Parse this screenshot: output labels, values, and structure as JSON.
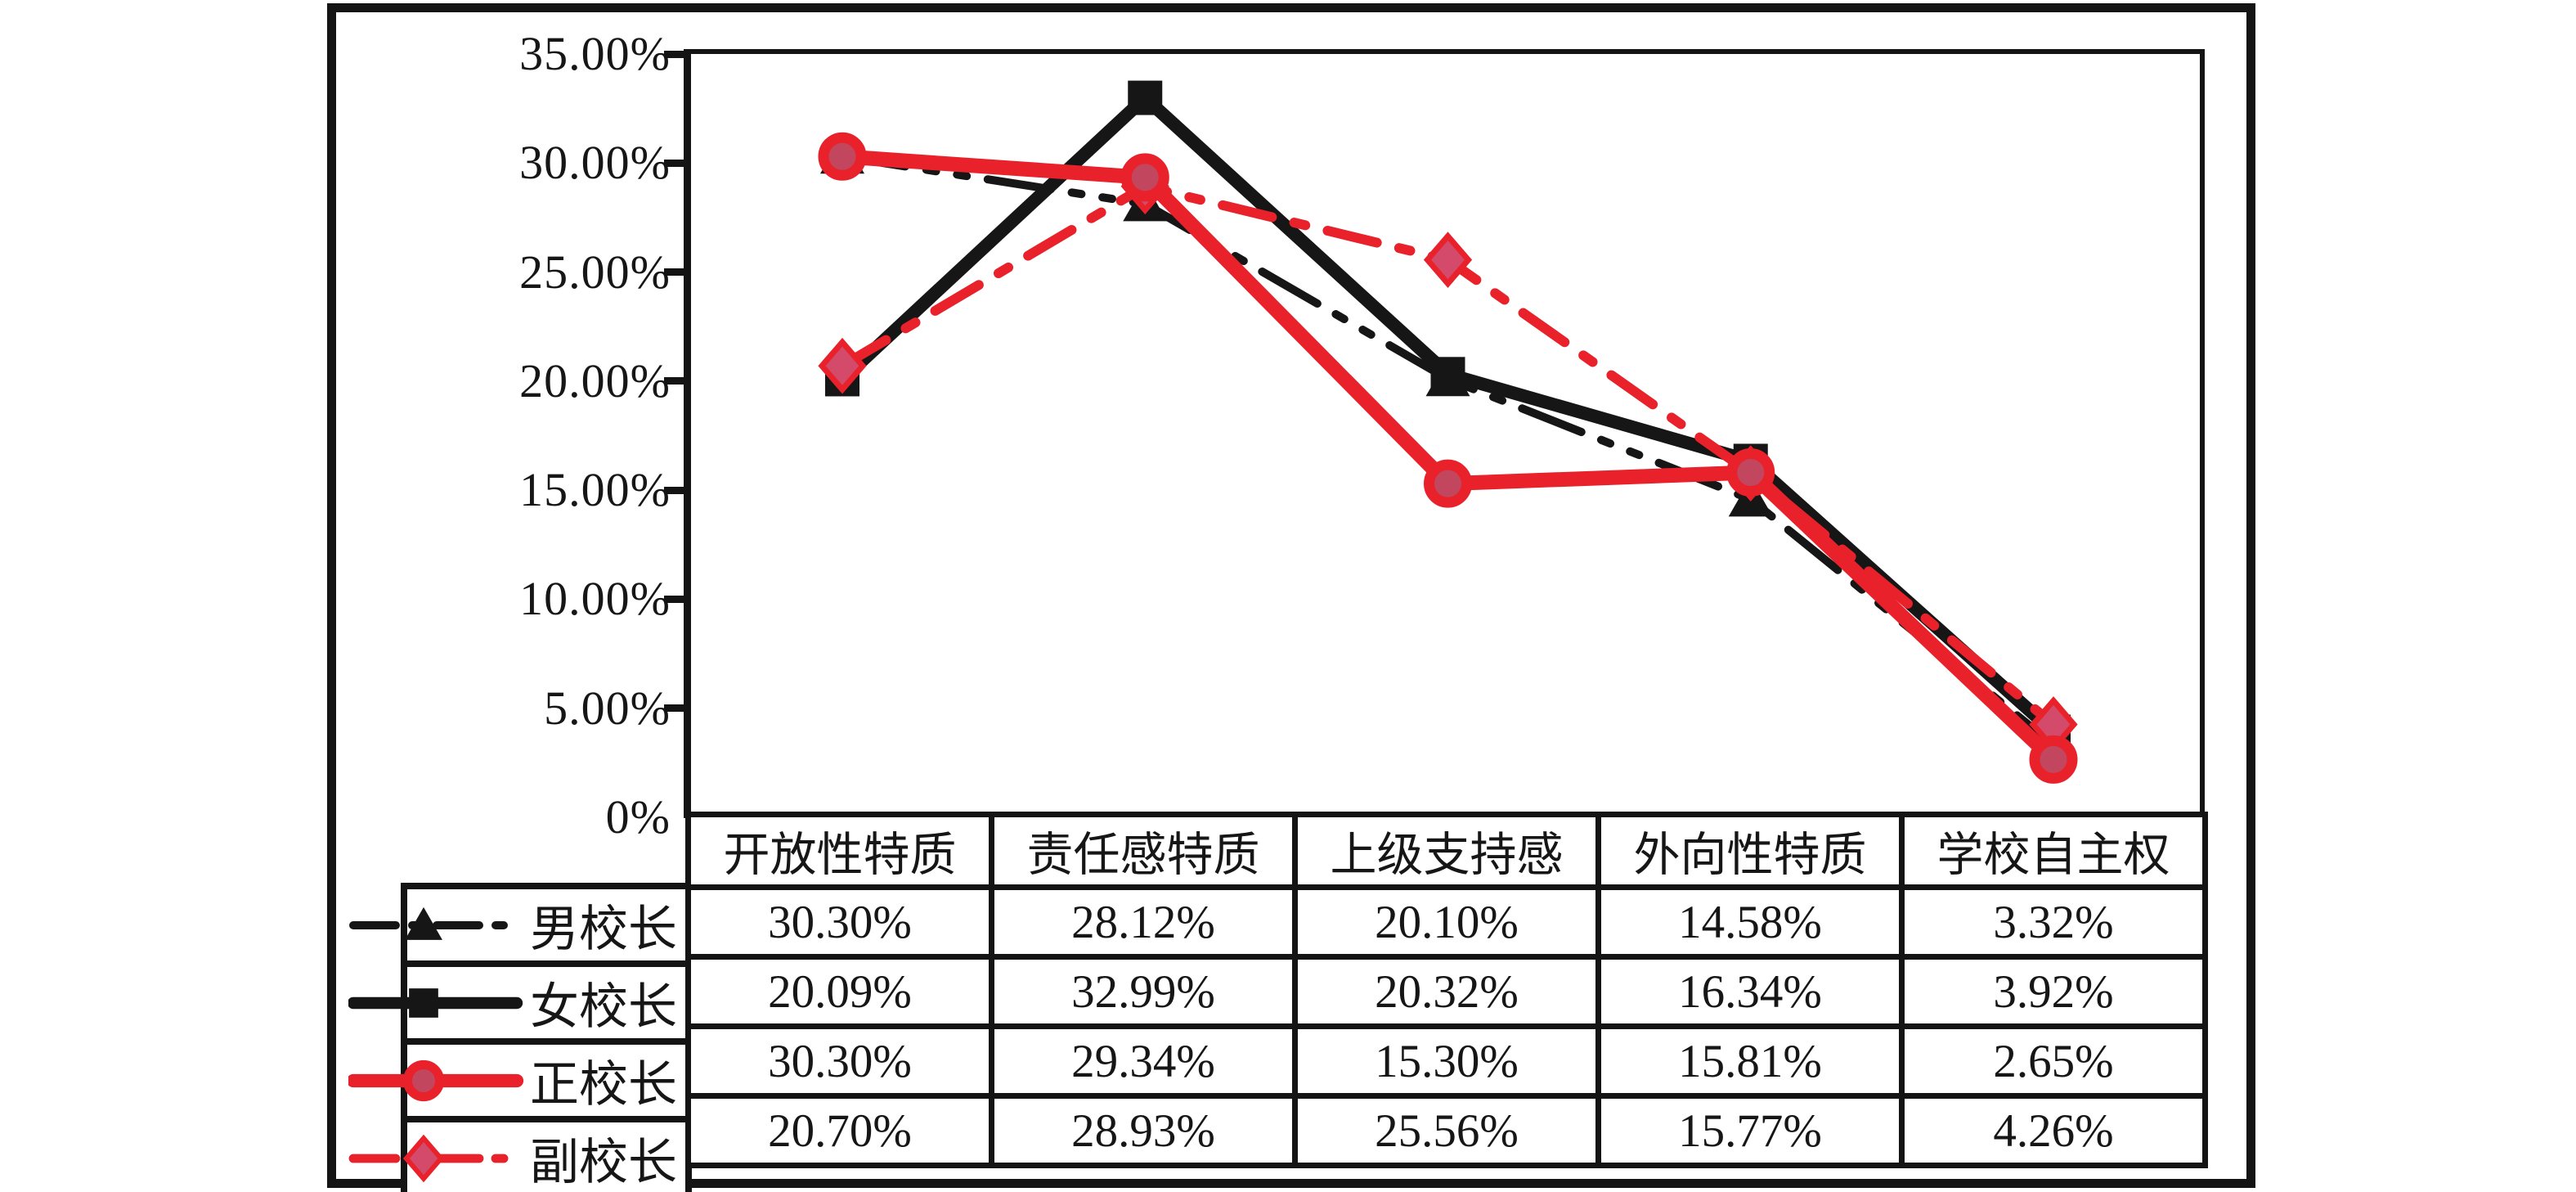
{
  "figure": {
    "y_axis": {
      "tick_labels": [
        "35.00%",
        "30.00%",
        "25.00%",
        "20.00%",
        "15.00%",
        "10.00%",
        "5.00%",
        "0%"
      ]
    },
    "table": {
      "column_headers": [
        "开放性特质",
        "责任感特质",
        "上级支持感",
        "外向性特质",
        "学校自主权"
      ],
      "rows": [
        {
          "label": "男校长",
          "values": [
            "30.30%",
            "28.12%",
            "20.10%",
            "14.58%",
            "3.32%"
          ]
        },
        {
          "label": "女校长",
          "values": [
            "20.09%",
            "32.99%",
            "20.32%",
            "16.34%",
            "3.92%"
          ]
        },
        {
          "label": "正校长",
          "values": [
            "30.30%",
            "29.34%",
            "15.30%",
            "15.81%",
            "2.65%"
          ]
        },
        {
          "label": "副校长",
          "values": [
            "20.70%",
            "28.93%",
            "25.56%",
            "15.77%",
            "4.26%"
          ]
        }
      ]
    },
    "colors": {
      "black_series": "#161616",
      "red_series": "#e8212b",
      "circle_fill": "#c3465f",
      "diamond_fill": "#d34a6a",
      "border": "#141414"
    }
  },
  "chart_data": {
    "type": "line",
    "categories": [
      "开放性特质",
      "责任感特质",
      "上级支持感",
      "外向性特质",
      "学校自主权"
    ],
    "series": [
      {
        "name": "男校长",
        "values": [
          30.3,
          28.12,
          20.1,
          14.58,
          3.32
        ],
        "color": "#161616",
        "style": "dash-dot",
        "marker": "triangle"
      },
      {
        "name": "女校长",
        "values": [
          20.09,
          32.99,
          20.32,
          16.34,
          3.92
        ],
        "color": "#161616",
        "style": "solid",
        "marker": "square"
      },
      {
        "name": "正校长",
        "values": [
          30.3,
          29.34,
          15.3,
          15.81,
          2.65
        ],
        "color": "#e8212b",
        "style": "solid",
        "marker": "circle"
      },
      {
        "name": "副校长",
        "values": [
          20.7,
          28.93,
          25.56,
          15.77,
          4.26
        ],
        "color": "#e8212b",
        "style": "dash-dot",
        "marker": "diamond"
      }
    ],
    "ylim": [
      0,
      35
    ],
    "y_tick_values": [
      35,
      30,
      25,
      20,
      15,
      10,
      5,
      0
    ],
    "y_tick_labels": [
      "35.00%",
      "30.00%",
      "25.00%",
      "20.00%",
      "15.00%",
      "10.00%",
      "5.00%",
      "0%"
    ],
    "grid": false,
    "legend_position": "left-of-table-rows"
  }
}
